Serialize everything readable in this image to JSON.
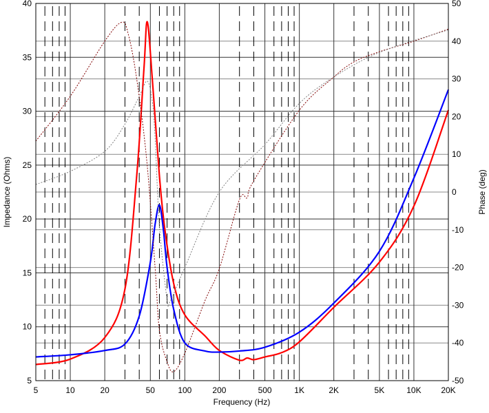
{
  "chart_data": {
    "type": "line",
    "title": "",
    "xlabel": "Frequency (Hz)",
    "ylabel": "Impedance (Ohms)",
    "y2label": "Phase (deg)",
    "xscale": "log",
    "xlim": [
      5,
      20000
    ],
    "ylim": [
      5,
      40
    ],
    "y2lim": [
      -50,
      50
    ],
    "grid": true,
    "legend": "none",
    "x_ticks": [
      {
        "v": 5,
        "label": "5"
      },
      {
        "v": 10,
        "label": "10"
      },
      {
        "v": 20,
        "label": "20"
      },
      {
        "v": 50,
        "label": "50"
      },
      {
        "v": 100,
        "label": "100"
      },
      {
        "v": 200,
        "label": "200"
      },
      {
        "v": 500,
        "label": "500"
      },
      {
        "v": 1000,
        "label": "1K"
      },
      {
        "v": 2000,
        "label": "2K"
      },
      {
        "v": 5000,
        "label": "5K"
      },
      {
        "v": 10000,
        "label": "10K"
      },
      {
        "v": 20000,
        "label": "20K"
      }
    ],
    "y_ticks": [
      "5",
      "10",
      "15",
      "20",
      "25",
      "30",
      "35",
      "40"
    ],
    "y2_ticks": [
      "-50",
      "-40",
      "-30",
      "-20",
      "-10",
      "0",
      "10",
      "20",
      "30",
      "40",
      "50"
    ],
    "series": [
      {
        "axis": "left",
        "style": "solid",
        "color": "#ff0000",
        "x": [
          5,
          10,
          20,
          30,
          38,
          44,
          47,
          52,
          60,
          67,
          80,
          100,
          150,
          200,
          300,
          350,
          400,
          500,
          700,
          1000,
          2000,
          5000,
          10000,
          20000
        ],
        "y": [
          6.5,
          7.0,
          9.0,
          13.5,
          24,
          34,
          38.3,
          33,
          24,
          19,
          14,
          11.1,
          9.15,
          7.8,
          6.9,
          7.1,
          6.95,
          7.2,
          7.6,
          8.6,
          11.8,
          16.0,
          21.2,
          30.1
        ]
      },
      {
        "axis": "left",
        "style": "solid",
        "color": "#0000ff",
        "x": [
          5,
          10,
          20,
          30,
          40,
          50,
          55,
          60,
          65,
          70,
          80,
          100,
          150,
          200,
          300,
          500,
          1000,
          2000,
          5000,
          10000,
          20000
        ],
        "y": [
          7.2,
          7.4,
          7.8,
          8.4,
          11,
          16,
          19.5,
          21.3,
          19,
          15.5,
          11.6,
          8.5,
          7.75,
          7.65,
          7.75,
          8.1,
          9.5,
          12.2,
          17,
          23.8,
          32
        ]
      },
      {
        "axis": "right",
        "style": "dotted",
        "color": "#800000",
        "x": [
          5,
          10,
          20,
          28,
          32,
          38,
          46.5,
          55,
          60,
          70,
          80,
          100,
          150,
          200,
          300,
          350,
          400,
          1000,
          2000,
          3000,
          5000,
          10000,
          20000
        ],
        "y": [
          13.5,
          25.4,
          40,
          45,
          42,
          30,
          8.4,
          -20,
          -36.7,
          -45,
          -47.6,
          -42.7,
          -28.8,
          -20.3,
          -2,
          -1.5,
          3,
          21.7,
          30.5,
          34.5,
          37.2,
          40,
          43.2
        ]
      },
      {
        "axis": "right",
        "style": "dotted",
        "color": "#808080",
        "x": [
          5,
          10,
          20,
          30,
          40,
          47,
          52,
          55,
          60,
          70,
          75,
          100,
          200,
          500,
          1000,
          2000,
          5000,
          20000
        ],
        "y": [
          2,
          5.5,
          10.8,
          18,
          25.4,
          29.4,
          24,
          14.4,
          -9,
          -28.5,
          -28.8,
          -20,
          0,
          12.6,
          23.5,
          30.5,
          37,
          43
        ]
      }
    ]
  }
}
